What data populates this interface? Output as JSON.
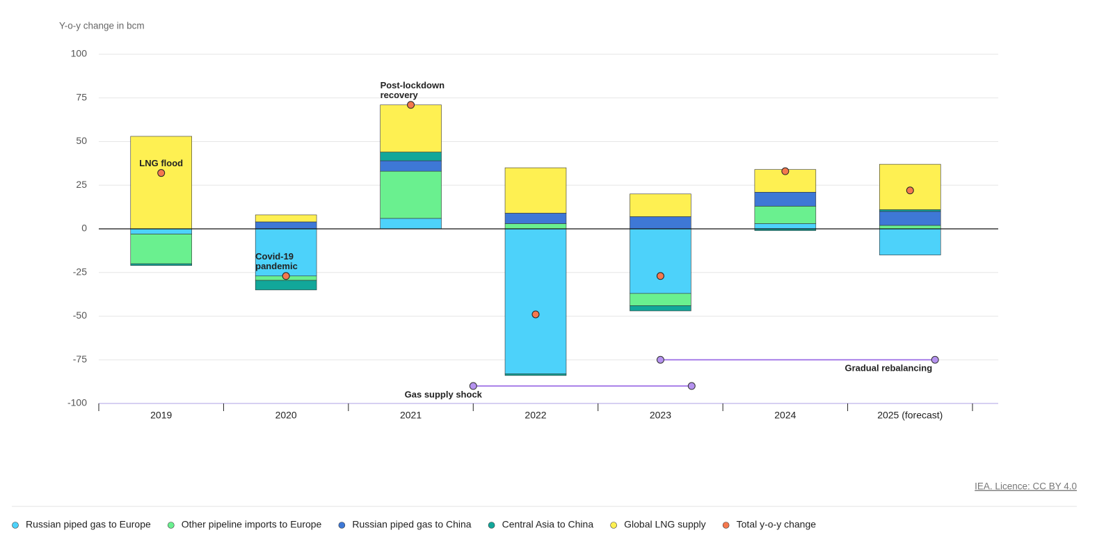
{
  "chart_data": {
    "type": "stacked_bar",
    "y_axis_label": "Y-o-y change in bcm",
    "categories": [
      "2019",
      "2020",
      "2021",
      "2022",
      "2023",
      "2024",
      "2025 (forecast)"
    ],
    "series": [
      {
        "name": "Russian piped gas to Europe",
        "color": "#4dd2fa",
        "values": [
          -3,
          -27,
          6,
          -83,
          -37,
          3,
          -15
        ]
      },
      {
        "name": "Other pipeline imports to Europe",
        "color": "#6af08f",
        "values": [
          -17,
          -2.5,
          27,
          3,
          -7,
          10,
          2
        ]
      },
      {
        "name": "Russian piped gas to China",
        "color": "#3e78d6",
        "values": [
          0,
          4,
          6,
          6,
          7,
          8,
          8
        ]
      },
      {
        "name": "Central Asia to China",
        "color": "#12a79a",
        "values": [
          -1,
          -5.5,
          5,
          -1,
          -3,
          -1,
          1
        ]
      },
      {
        "name": "Global LNG supply",
        "color": "#fef052",
        "values": [
          53,
          4,
          27,
          26,
          13,
          13,
          26
        ]
      }
    ],
    "total": {
      "name": "Total y-o-y change",
      "color": "#f4784e",
      "values": [
        32,
        -27,
        71,
        -49,
        -27,
        33,
        22
      ]
    },
    "ylim": [
      -100,
      100
    ],
    "yticks": [
      -100,
      -75,
      -50,
      -25,
      0,
      25,
      50,
      75,
      100
    ],
    "grid": true,
    "annotations": [
      {
        "category": 0,
        "lines": [
          "LNG flood"
        ]
      },
      {
        "category": 1,
        "lines": [
          "Covid-19",
          "pandemic"
        ]
      },
      {
        "category": 2,
        "lines": [
          "Post-lockdown",
          "recovery"
        ]
      }
    ],
    "ranges": [
      {
        "label": "Gas supply shock",
        "y": -90,
        "from": 2.5,
        "to": 4.25,
        "label_side": "start"
      },
      {
        "label": "Gradual rebalancing",
        "y": -75,
        "from": 4,
        "to": 6.2,
        "label_side": "end"
      }
    ],
    "range_color": "#a77ee8",
    "range_dot_color": "#b592ef",
    "source": "IEA. Licence: CC BY 4.0"
  }
}
